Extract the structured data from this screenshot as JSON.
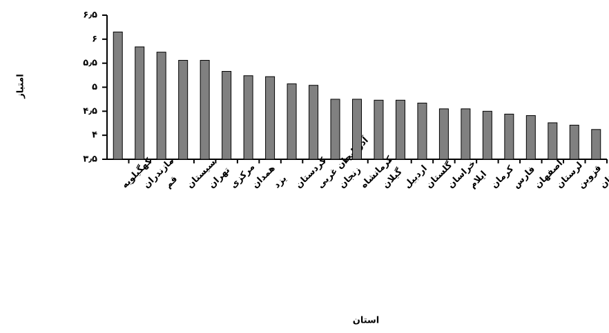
{
  "chart_data": {
    "type": "bar",
    "y_label": "امتیاز",
    "x_label": "استان",
    "categories": [
      "کهگیلویه",
      "مازندران",
      "قم",
      "سیستان",
      "تهران",
      "مرکزی",
      "همدان",
      "یزد",
      "کردستان",
      "آذربایجان غربی",
      "زنجان",
      "کرمانشاه",
      "گیلان",
      "اردبیل",
      "گلستان",
      "خراسان",
      "ایلام",
      "کرمان",
      "فارس",
      "اصفهان",
      "لرستان",
      "قزوین",
      "خوزستان"
    ],
    "values": [
      6.15,
      5.84,
      5.73,
      5.56,
      5.56,
      5.33,
      5.24,
      5.22,
      5.07,
      5.04,
      4.75,
      4.75,
      4.73,
      4.73,
      4.67,
      4.55,
      4.55,
      4.5,
      4.44,
      4.41,
      4.26,
      4.21,
      4.12
    ],
    "color": "#808080",
    "ylim": [
      3.5,
      6.5
    ],
    "yticks": [
      {
        "value": 3.5,
        "label": "۳٫۵"
      },
      {
        "value": 4,
        "label": "۴"
      },
      {
        "value": 4.5,
        "label": "۴٫۵"
      },
      {
        "value": 5,
        "label": "۵"
      },
      {
        "value": 5.5,
        "label": "۵٫۵"
      },
      {
        "value": 6,
        "label": "۶"
      },
      {
        "value": 6.5,
        "label": "۶٫۵"
      }
    ],
    "grid": false
  }
}
